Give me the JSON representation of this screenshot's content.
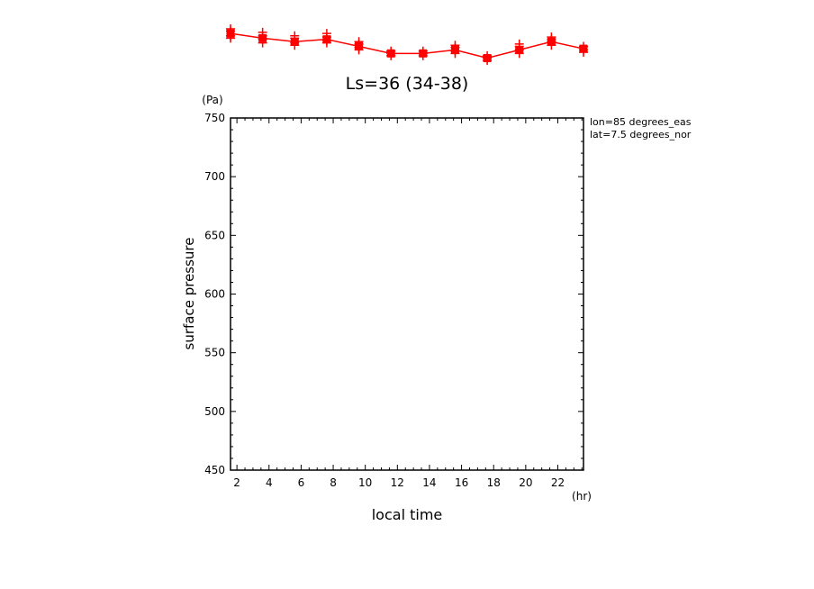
{
  "chart_data": {
    "type": "line",
    "title": "Ls=36 (34-38)",
    "xlabel": "local time",
    "ylabel": "surface pressure",
    "xunit": "(hr)",
    "yunit": "(Pa)",
    "annotations": [
      "lon=85 degrees_eas",
      "lat=7.5 degrees_nor"
    ],
    "xlim": [
      1.6,
      23.6
    ],
    "ylim": [
      450,
      750
    ],
    "xticks": [
      2,
      4,
      6,
      8,
      10,
      12,
      14,
      16,
      18,
      20,
      22
    ],
    "yticks": [
      450,
      500,
      550,
      600,
      650,
      700,
      750
    ],
    "grid": false,
    "series_color": "#ff0000",
    "series": [
      {
        "x": [
          1.6,
          3.6,
          5.6,
          7.6,
          9.6,
          11.6,
          13.6,
          15.6,
          17.6,
          19.6,
          21.6,
          23.6
        ],
        "values": [
          822,
          818,
          815,
          817,
          811,
          805,
          805,
          808,
          801,
          808,
          815,
          809
        ],
        "spread": [
          [
            818,
            820,
            824,
            826
          ],
          [
            814,
            817,
            820,
            823
          ],
          [
            812,
            814,
            818,
            820
          ],
          [
            814,
            816,
            819,
            822
          ],
          [
            808,
            810,
            813,
            815
          ],
          [
            803,
            805,
            807
          ],
          [
            803,
            805,
            807
          ],
          [
            805,
            807,
            810,
            812
          ],
          [
            799,
            801,
            803
          ],
          [
            805,
            808,
            811,
            813
          ],
          [
            812,
            815,
            817,
            819
          ],
          [
            806,
            808,
            811
          ]
        ]
      }
    ]
  }
}
